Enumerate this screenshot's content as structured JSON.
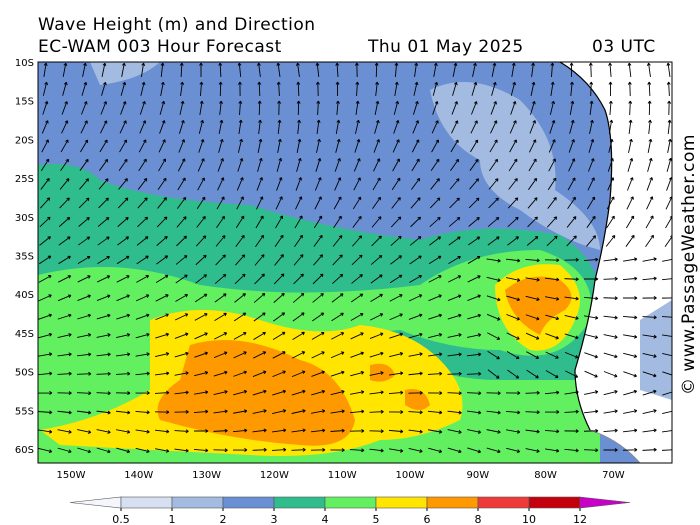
{
  "header": {
    "title": "Wave Height (m) and Direction",
    "model": "EC-WAM 003 Hour Forecast",
    "date": "Thu 01 May 2025",
    "time": "03 UTC"
  },
  "credit": "© www.PassageWeather.com",
  "map": {
    "lat_labels": [
      "10S",
      "15S",
      "20S",
      "25S",
      "30S",
      "35S",
      "40S",
      "45S",
      "50S",
      "55S",
      "60S"
    ],
    "lon_labels": [
      "150W",
      "140W",
      "130W",
      "120W",
      "110W",
      "100W",
      "90W",
      "80W",
      "70W"
    ]
  },
  "colorbar": {
    "ticks": [
      0.5,
      1,
      2,
      3,
      4,
      5,
      6,
      8,
      10,
      12
    ],
    "colors": [
      "#f4f6fb",
      "#d6e0f1",
      "#a3bbe1",
      "#6a8fd2",
      "#2fbd8e",
      "#62f061",
      "#ffe500",
      "#ff9900",
      "#ef3a3a",
      "#c4000e",
      "#c800c8"
    ]
  }
}
